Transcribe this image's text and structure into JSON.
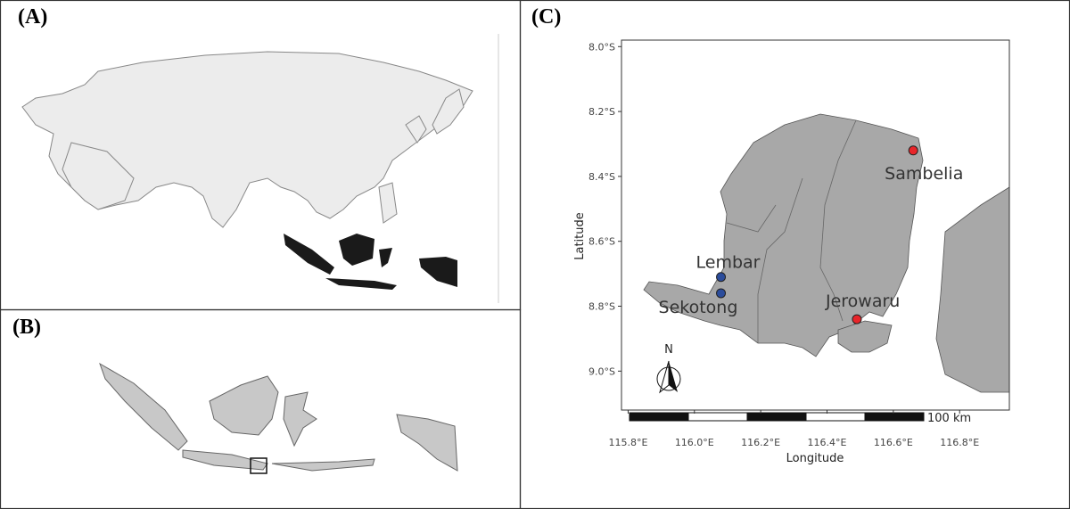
{
  "panels": [
    {
      "label": "(A)"
    },
    {
      "label": "(B)"
    },
    {
      "label": "(C)"
    }
  ],
  "chart_data": {
    "type": "scatter",
    "xlabel": "Longitude",
    "ylabel": "Latitude",
    "xlim": [
      115.78,
      116.95
    ],
    "ylim": [
      -9.12,
      -7.98
    ],
    "xticks": [
      {
        "value": 115.8,
        "label": "115.8°E"
      },
      {
        "value": 116.0,
        "label": "116.0°E"
      },
      {
        "value": 116.2,
        "label": "116.2°E"
      },
      {
        "value": 116.4,
        "label": "116.4°E"
      },
      {
        "value": 116.6,
        "label": "116.6°E"
      },
      {
        "value": 116.8,
        "label": "116.8°E"
      }
    ],
    "yticks": [
      {
        "value": -8.0,
        "label": "8.0°S"
      },
      {
        "value": -8.2,
        "label": "8.2°S"
      },
      {
        "value": -8.4,
        "label": "8.4°S"
      },
      {
        "value": -8.6,
        "label": "8.6°S"
      },
      {
        "value": -8.8,
        "label": "8.8°S"
      },
      {
        "value": -9.0,
        "label": "9.0°S"
      }
    ],
    "points": [
      {
        "label": "Sambelia",
        "x": 116.66,
        "y": -8.32,
        "color": "#e8252a"
      },
      {
        "label": "Lembar",
        "x": 116.08,
        "y": -8.71,
        "color": "#2b4c9b"
      },
      {
        "label": "Sekotong",
        "x": 116.08,
        "y": -8.76,
        "color": "#2b4c9b"
      },
      {
        "label": "Jerowaru",
        "x": 116.49,
        "y": -8.84,
        "color": "#e8252a"
      }
    ],
    "north": "N",
    "scale_label": "100 km"
  }
}
